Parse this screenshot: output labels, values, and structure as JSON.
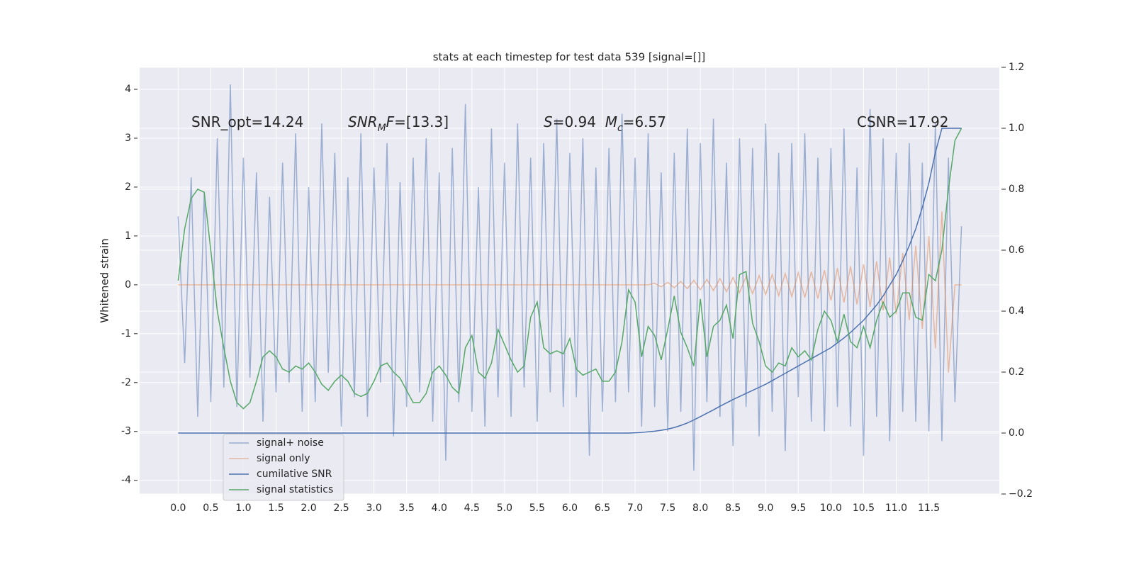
{
  "chart_data": {
    "type": "line",
    "title": "stats at each timestep for test data 539 [signal=[]]",
    "y_label": "Whitened strain",
    "annotations": [
      [
        {
          "text": "SNR_opt=14.24"
        }
      ],
      [
        {
          "text": "SNR",
          "italic": true
        },
        {
          "text": "M",
          "italic": true,
          "sub": true
        },
        {
          "text": "F",
          "italic": true
        },
        {
          "text": "=[13.3]"
        }
      ],
      [
        {
          "text": "S",
          "italic": true
        },
        {
          "text": "=0.94  "
        },
        {
          "text": "M",
          "italic": true
        },
        {
          "text": "c",
          "italic": true,
          "sub": true
        },
        {
          "text": "=6.57"
        }
      ],
      [
        {
          "text": "CSNR=17.92"
        }
      ]
    ],
    "x": [
      0,
      0.1,
      0.2,
      0.3,
      0.4,
      0.5,
      0.6,
      0.7,
      0.8,
      0.9,
      1,
      1.1,
      1.2,
      1.3,
      1.4,
      1.5,
      1.6,
      1.7,
      1.8,
      1.9,
      2,
      2.1,
      2.2,
      2.3,
      2.4,
      2.5,
      2.6,
      2.7,
      2.8,
      2.9,
      3,
      3.1,
      3.2,
      3.3,
      3.4,
      3.5,
      3.6,
      3.7,
      3.8,
      3.9,
      4,
      4.1,
      4.2,
      4.3,
      4.4,
      4.5,
      4.6,
      4.7,
      4.8,
      4.9,
      5,
      5.1,
      5.2,
      5.3,
      5.4,
      5.5,
      5.6,
      5.7,
      5.8,
      5.9,
      6,
      6.1,
      6.2,
      6.3,
      6.4,
      6.5,
      6.6,
      6.7,
      6.8,
      6.9,
      7,
      7.1,
      7.2,
      7.3,
      7.4,
      7.5,
      7.6,
      7.7,
      7.8,
      7.9,
      8,
      8.1,
      8.2,
      8.3,
      8.4,
      8.5,
      8.6,
      8.7,
      8.8,
      8.9,
      9,
      9.1,
      9.2,
      9.3,
      9.4,
      9.5,
      9.6,
      9.7,
      9.8,
      9.9,
      10,
      10.1,
      10.2,
      10.3,
      10.4,
      10.5,
      10.6,
      10.7,
      10.8,
      10.9,
      11,
      11.1,
      11.2,
      11.3,
      11.4,
      11.5,
      11.6,
      11.7,
      11.8,
      11.9,
      12
    ],
    "series": [
      {
        "name": "signal+ noise",
        "color": "#4c72b0",
        "alpha": 0.5,
        "values": [
          1.4,
          -1.6,
          2.2,
          -2.7,
          1.9,
          -2.4,
          3.0,
          -2.1,
          4.1,
          -2.5,
          2.6,
          -1.9,
          2.3,
          -2.8,
          1.8,
          -2.2,
          2.5,
          -2.0,
          3.1,
          -2.6,
          2.0,
          -2.4,
          3.3,
          -1.8,
          2.7,
          -2.9,
          2.2,
          -2.3,
          3.1,
          -2.7,
          2.4,
          -2.0,
          2.9,
          -3.1,
          2.1,
          -2.5,
          2.6,
          -2.2,
          3.0,
          -2.8,
          2.3,
          -3.6,
          2.8,
          -2.4,
          3.7,
          -2.6,
          2.0,
          -2.9,
          3.2,
          -2.3,
          2.5,
          -2.7,
          3.3,
          -2.1,
          2.6,
          -2.8,
          2.9,
          -2.2,
          3.4,
          -2.5,
          2.7,
          -2.3,
          3.0,
          -3.5,
          2.4,
          -2.6,
          2.8,
          -2.4,
          3.5,
          -2.2,
          2.6,
          -2.9,
          3.1,
          -2.5,
          2.3,
          -3.0,
          2.7,
          -2.6,
          3.2,
          -3.8,
          2.9,
          -2.4,
          3.4,
          -2.7,
          2.5,
          -3.3,
          3.0,
          -2.5,
          2.8,
          -3.1,
          3.3,
          -2.6,
          2.7,
          -3.4,
          2.9,
          -2.3,
          3.1,
          -2.8,
          2.6,
          -3.0,
          2.8,
          -2.5,
          3.2,
          -2.9,
          2.4,
          -3.5,
          3.6,
          -2.7,
          3.0,
          -3.2,
          2.7,
          -2.6,
          2.9,
          -2.8,
          2.5,
          -3.0,
          3.3,
          -3.2,
          2.6,
          -2.4,
          1.2
        ]
      },
      {
        "name": "signal only",
        "color": "#dd8452",
        "alpha": 0.5,
        "values": [
          0,
          0,
          0,
          0,
          0,
          0,
          0,
          0,
          0,
          0,
          0,
          0,
          0,
          0,
          0,
          0,
          0,
          0,
          0,
          0,
          0,
          0,
          0,
          0,
          0,
          0,
          0,
          0,
          0,
          0,
          0,
          0,
          0,
          0,
          0,
          0,
          0,
          0,
          0,
          0,
          0,
          0,
          0,
          0,
          0,
          0,
          0,
          0,
          0,
          0,
          0,
          0,
          0,
          0,
          0,
          0,
          0,
          0,
          0,
          0,
          0,
          0,
          0,
          0,
          0,
          0,
          0,
          0,
          0,
          0,
          0,
          0,
          0,
          0.03,
          -0.04,
          0.05,
          -0.06,
          0.07,
          -0.08,
          0.09,
          -0.1,
          0.11,
          -0.12,
          0.13,
          -0.14,
          0.15,
          -0.16,
          0.17,
          -0.18,
          0.19,
          -0.2,
          0.21,
          -0.22,
          0.23,
          -0.24,
          0.25,
          -0.26,
          0.27,
          -0.28,
          0.3,
          -0.32,
          0.34,
          -0.36,
          0.38,
          -0.4,
          0.42,
          -0.45,
          0.48,
          -0.52,
          0.56,
          -0.6,
          0.65,
          -0.72,
          0.8,
          -0.9,
          1.0,
          -1.3,
          1.5,
          -1.8,
          0,
          0
        ]
      },
      {
        "name": "cumilative SNR",
        "color": "#4c72b0",
        "alpha": 1,
        "axis": "y2",
        "values": [
          0,
          0,
          0,
          0,
          0,
          0,
          0,
          0,
          0,
          0,
          0,
          0,
          0,
          0,
          0,
          0,
          0,
          0,
          0,
          0,
          0,
          0,
          0,
          0,
          0,
          0,
          0,
          0,
          0,
          0,
          0,
          0,
          0,
          0,
          0,
          0,
          0,
          0,
          0,
          0,
          0,
          0,
          0,
          0,
          0,
          0,
          0,
          0,
          0,
          0,
          0,
          0,
          0,
          0,
          0,
          0,
          0,
          0,
          0,
          0,
          0,
          0,
          0,
          0,
          0,
          0,
          0,
          0,
          0,
          0,
          0.001,
          0.002,
          0.004,
          0.006,
          0.009,
          0.013,
          0.018,
          0.025,
          0.033,
          0.043,
          0.054,
          0.065,
          0.076,
          0.088,
          0.099,
          0.11,
          0.12,
          0.13,
          0.14,
          0.15,
          0.16,
          0.172,
          0.184,
          0.196,
          0.208,
          0.22,
          0.232,
          0.244,
          0.256,
          0.268,
          0.28,
          0.296,
          0.312,
          0.33,
          0.35,
          0.37,
          0.395,
          0.42,
          0.45,
          0.485,
          0.52,
          0.565,
          0.615,
          0.67,
          0.74,
          0.82,
          0.92,
          1.0,
          1.0,
          1.0,
          1.0
        ]
      },
      {
        "name": "signal statistics",
        "color": "#55a868",
        "alpha": 1,
        "axis": "y2",
        "values": [
          0.5,
          0.67,
          0.77,
          0.8,
          0.79,
          0.6,
          0.4,
          0.28,
          0.17,
          0.1,
          0.08,
          0.1,
          0.17,
          0.25,
          0.27,
          0.25,
          0.21,
          0.2,
          0.22,
          0.21,
          0.23,
          0.2,
          0.16,
          0.14,
          0.17,
          0.19,
          0.17,
          0.13,
          0.12,
          0.13,
          0.17,
          0.22,
          0.23,
          0.2,
          0.18,
          0.14,
          0.1,
          0.1,
          0.13,
          0.2,
          0.22,
          0.19,
          0.15,
          0.13,
          0.28,
          0.32,
          0.2,
          0.18,
          0.23,
          0.34,
          0.29,
          0.24,
          0.2,
          0.22,
          0.38,
          0.43,
          0.28,
          0.26,
          0.27,
          0.26,
          0.31,
          0.21,
          0.19,
          0.2,
          0.21,
          0.17,
          0.17,
          0.2,
          0.3,
          0.47,
          0.43,
          0.25,
          0.35,
          0.32,
          0.24,
          0.34,
          0.45,
          0.33,
          0.28,
          0.22,
          0.44,
          0.25,
          0.35,
          0.37,
          0.42,
          0.31,
          0.52,
          0.53,
          0.36,
          0.3,
          0.22,
          0.2,
          0.23,
          0.22,
          0.28,
          0.25,
          0.27,
          0.24,
          0.34,
          0.4,
          0.37,
          0.3,
          0.39,
          0.3,
          0.28,
          0.35,
          0.28,
          0.37,
          0.43,
          0.38,
          0.4,
          0.46,
          0.46,
          0.38,
          0.37,
          0.52,
          0.5,
          0.6,
          0.8,
          0.96,
          1.0
        ]
      }
    ],
    "xlim": [
      -0.59,
      12.58
    ],
    "xticks": [
      {
        "value": 0,
        "label": "0.0"
      },
      0.5,
      {
        "value": 1,
        "label": "1.0"
      },
      1.5,
      {
        "value": 2,
        "label": "2.0"
      },
      2.5,
      {
        "value": 3,
        "label": "3.0"
      },
      3.5,
      {
        "value": 4,
        "label": "4.0"
      },
      4.5,
      {
        "value": 5,
        "label": "5.0"
      },
      5.5,
      {
        "value": 6,
        "label": "6.0"
      },
      6.5,
      {
        "value": 7,
        "label": "7.0"
      },
      7.5,
      {
        "value": 8,
        "label": "8.0"
      },
      8.5,
      {
        "value": 9,
        "label": "9.0"
      },
      9.5,
      {
        "value": 10,
        "label": "10.0"
      },
      10.5,
      {
        "value": 11,
        "label": "11.0"
      },
      11.5
    ],
    "ylim": [
      -4.28,
      4.45
    ],
    "yticks": [
      -4,
      -3,
      -2,
      -1,
      0,
      1,
      2,
      3,
      4
    ],
    "y2lim": [
      -0.2,
      1.2
    ],
    "y2ticks": [
      {
        "value": -0.2,
        "label": "−0.2"
      },
      {
        "value": 0,
        "label": "0.0"
      },
      0.2,
      0.4,
      0.6,
      0.8,
      {
        "value": 1,
        "label": "1.0"
      },
      1.2
    ],
    "grid": true,
    "legend": "lower left"
  }
}
